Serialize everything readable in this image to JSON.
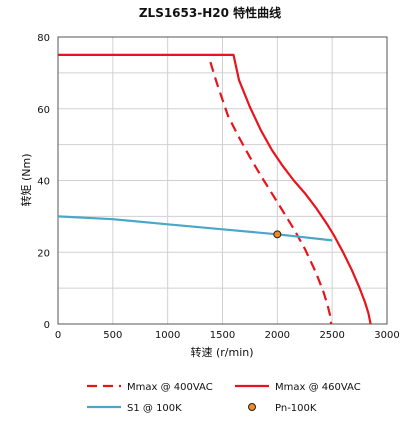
{
  "chart_data": {
    "type": "line",
    "title": "ZLS1653-H20 特性曲线",
    "xlabel": "转速 (r/min)",
    "ylabel": "转矩 (Nm)",
    "xlim": [
      0,
      3000
    ],
    "ylim": [
      0,
      80
    ],
    "xticks": [
      0,
      500,
      1000,
      1500,
      2000,
      2500,
      3000
    ],
    "yticks": [
      0,
      20,
      40,
      60,
      80
    ],
    "grid": true,
    "legend_position": "bottom",
    "series": [
      {
        "name": "Mmax @ 400VAC",
        "color": "#e8141b",
        "style": "dashed",
        "marker": "none",
        "x": [
          1390,
          1450,
          1550,
          1650,
          1750,
          1850,
          1950,
          2050,
          2150,
          2250,
          2350,
          2420,
          2460,
          2480,
          2490
        ],
        "y": [
          73,
          67,
          58,
          52,
          46.5,
          41.3,
          36.4,
          31.5,
          26.5,
          21,
          14.5,
          9,
          5,
          2.5,
          0
        ]
      },
      {
        "name": "Mmax @ 460VAC",
        "color": "#e8141b",
        "style": "solid",
        "marker": "none",
        "x": [
          0,
          1600,
          1650,
          1750,
          1850,
          1950,
          2050,
          2150,
          2250,
          2350,
          2450,
          2520,
          2600,
          2680,
          2750,
          2800,
          2830,
          2850
        ],
        "y": [
          75,
          75,
          68,
          60.5,
          54,
          48.5,
          44,
          40,
          36.5,
          32.5,
          28,
          24.5,
          20,
          15,
          10,
          6,
          3,
          0
        ]
      },
      {
        "name": "S1 @ 100K",
        "color": "#4aa7c8",
        "style": "solid",
        "marker": "none",
        "x": [
          0,
          500,
          1000,
          1500,
          2000,
          2500
        ],
        "y": [
          30,
          29.2,
          27.8,
          26.4,
          25,
          23.3
        ]
      },
      {
        "name": "Pn-100K",
        "color": "#f08a24",
        "style": "none",
        "marker": "circle",
        "x": [
          2000
        ],
        "y": [
          25
        ]
      }
    ]
  }
}
